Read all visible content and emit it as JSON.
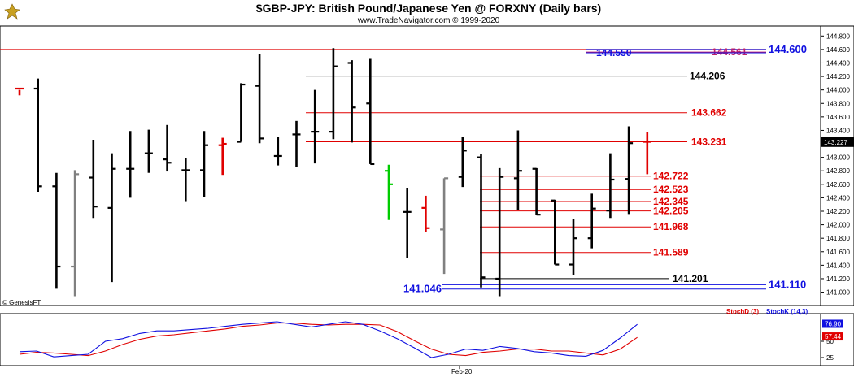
{
  "chart_data": {
    "type": "ohlc",
    "title": "$GBP-JPY:  British Pound/Japanese Yen @ FORXNY  (Daily bars)",
    "subtitle": "www.TradeNavigator.com © 1999-2020",
    "watermark": "© GenesisFT",
    "x_label": "Feb-20",
    "price_axis": {
      "ylim": [
        140.85,
        144.9
      ],
      "ticks": [
        "144.800",
        "144.600",
        "144.400",
        "144.200",
        "144.000",
        "143.800",
        "143.600",
        "143.400",
        "143.200",
        "143.000",
        "142.800",
        "142.600",
        "142.400",
        "142.200",
        "142.000",
        "141.800",
        "141.600",
        "141.400",
        "141.200",
        "141.000"
      ],
      "tick_values": [
        144.8,
        144.6,
        144.4,
        144.2,
        144.0,
        143.8,
        143.6,
        143.4,
        143.2,
        143.0,
        142.8,
        142.6,
        142.4,
        142.2,
        142.0,
        141.8,
        141.6,
        141.4,
        141.2,
        141.0
      ],
      "last_price": "143.227",
      "last_value": 143.227
    },
    "bars": [
      {
        "o": 144.02,
        "h": 144.0,
        "l": 143.92,
        "c": 144.02,
        "color": "#e00000"
      },
      {
        "o": 144.02,
        "h": 144.17,
        "l": 142.49,
        "c": 142.57,
        "color": "#000000"
      },
      {
        "o": 142.57,
        "h": 142.77,
        "l": 141.05,
        "c": 141.38,
        "color": "#000000"
      },
      {
        "o": 141.38,
        "h": 142.81,
        "l": 140.94,
        "c": 142.75,
        "color": "#808080"
      },
      {
        "o": 142.7,
        "h": 143.26,
        "l": 142.1,
        "c": 142.27,
        "color": "#000000"
      },
      {
        "o": 142.25,
        "h": 143.06,
        "l": 141.15,
        "c": 142.83,
        "color": "#000000"
      },
      {
        "o": 142.83,
        "h": 143.39,
        "l": 142.4,
        "c": 142.83,
        "color": "#000000"
      },
      {
        "o": 143.06,
        "h": 143.41,
        "l": 142.77,
        "c": 143.06,
        "color": "#000000"
      },
      {
        "o": 142.97,
        "h": 143.48,
        "l": 142.79,
        "c": 142.92,
        "color": "#000000"
      },
      {
        "o": 142.81,
        "h": 142.99,
        "l": 142.35,
        "c": 142.81,
        "color": "#000000"
      },
      {
        "o": 142.81,
        "h": 143.39,
        "l": 142.41,
        "c": 143.18,
        "color": "#000000"
      },
      {
        "o": 143.18,
        "h": 143.29,
        "l": 142.74,
        "c": 143.2,
        "color": "#e00000"
      },
      {
        "o": 143.23,
        "h": 144.1,
        "l": 143.23,
        "c": 144.08,
        "color": "#000000"
      },
      {
        "o": 144.06,
        "h": 144.53,
        "l": 143.21,
        "c": 143.28,
        "color": "#000000"
      },
      {
        "o": 143.02,
        "h": 143.3,
        "l": 142.88,
        "c": 143.02,
        "color": "#000000"
      },
      {
        "o": 143.34,
        "h": 143.54,
        "l": 142.86,
        "c": 143.34,
        "color": "#000000"
      },
      {
        "o": 143.38,
        "h": 144.0,
        "l": 142.91,
        "c": 143.38,
        "color": "#000000"
      },
      {
        "o": 143.38,
        "h": 144.62,
        "l": 143.27,
        "c": 144.35,
        "color": "#000000"
      },
      {
        "o": 144.4,
        "h": 144.44,
        "l": 143.22,
        "c": 143.74,
        "color": "#000000"
      },
      {
        "o": 143.8,
        "h": 144.46,
        "l": 142.9,
        "c": 142.9,
        "color": "#000000"
      },
      {
        "o": 142.8,
        "h": 142.89,
        "l": 142.07,
        "c": 142.6,
        "color": "#00cc00"
      },
      {
        "o": 142.19,
        "h": 142.55,
        "l": 141.51,
        "c": 142.19,
        "color": "#000000"
      },
      {
        "o": 142.25,
        "h": 142.43,
        "l": 141.89,
        "c": 141.95,
        "color": "#e00000"
      },
      {
        "o": 141.93,
        "h": 142.69,
        "l": 141.27,
        "c": 142.69,
        "color": "#808080"
      },
      {
        "o": 142.71,
        "h": 143.3,
        "l": 142.56,
        "c": 143.1,
        "color": "#000000"
      },
      {
        "o": 143.0,
        "h": 143.05,
        "l": 141.07,
        "c": 141.22,
        "color": "#000000"
      },
      {
        "o": 141.2,
        "h": 142.84,
        "l": 140.94,
        "c": 142.71,
        "color": "#000000"
      },
      {
        "o": 142.69,
        "h": 143.4,
        "l": 142.22,
        "c": 142.8,
        "color": "#000000"
      },
      {
        "o": 142.83,
        "h": 142.84,
        "l": 142.15,
        "c": 142.15,
        "color": "#000000"
      },
      {
        "o": 142.36,
        "h": 142.37,
        "l": 141.41,
        "c": 141.41,
        "color": "#000000"
      },
      {
        "o": 141.41,
        "h": 142.08,
        "l": 141.26,
        "c": 141.8,
        "color": "#000000"
      },
      {
        "o": 141.8,
        "h": 142.46,
        "l": 141.65,
        "c": 142.24,
        "color": "#000000"
      },
      {
        "o": 142.21,
        "h": 143.06,
        "l": 142.1,
        "c": 142.67,
        "color": "#000000"
      },
      {
        "o": 142.68,
        "h": 143.46,
        "l": 142.16,
        "c": 143.21,
        "color": "#000000"
      },
      {
        "o": 143.23,
        "h": 143.37,
        "l": 142.75,
        "c": 143.23,
        "color": "#e00000"
      }
    ],
    "levels": [
      {
        "label": "144.600",
        "value": 144.6,
        "color": "#1010e0",
        "size": "big"
      },
      {
        "label": "144.561",
        "value": 144.561,
        "color": "#c0206a",
        "size": "normal"
      },
      {
        "label": "144.550",
        "value": 144.55,
        "color": "#1010e0",
        "size": "normal"
      },
      {
        "label": "144.206",
        "value": 144.206,
        "color": "#000000",
        "size": "normal"
      },
      {
        "label": "143.662",
        "value": 143.662,
        "color": "#e00000",
        "size": "normal"
      },
      {
        "label": "143.231",
        "value": 143.231,
        "color": "#e00000",
        "size": "normal"
      },
      {
        "label": "142.722",
        "value": 142.722,
        "color": "#e00000",
        "size": "normal"
      },
      {
        "label": "142.523",
        "value": 142.523,
        "color": "#e00000",
        "size": "normal"
      },
      {
        "label": "142.345",
        "value": 142.345,
        "color": "#e00000",
        "size": "normal"
      },
      {
        "label": "142.205",
        "value": 142.205,
        "color": "#e00000",
        "size": "normal"
      },
      {
        "label": "141.968",
        "value": 141.968,
        "color": "#e00000",
        "size": "normal"
      },
      {
        "label": "141.589",
        "value": 141.589,
        "color": "#e00000",
        "size": "normal"
      },
      {
        "label": "141.201",
        "value": 141.201,
        "color": "#000000",
        "size": "normal"
      },
      {
        "label": "141.046",
        "value": 141.046,
        "color": "#1010e0",
        "size": "big"
      },
      {
        "label": "141.110",
        "value": 141.11,
        "color": "#1010e0",
        "size": "big"
      }
    ],
    "stochastic": {
      "ylim": [
        15,
        90
      ],
      "legend_d": "StochD (3)",
      "legend_k": "StochK (14,3)",
      "d_color": "#e00000",
      "k_color": "#1010e0",
      "ticks": [
        "50",
        "25"
      ],
      "tick_values": [
        50,
        25
      ],
      "k_value_label": "76.90",
      "k_value": 76.9,
      "d_value_label": "57.44",
      "d_value": 57.44,
      "k_values": [
        34,
        35,
        26,
        28,
        30,
        50,
        54,
        62,
        66,
        66,
        68,
        70,
        73,
        76,
        78,
        80,
        76,
        72,
        76,
        80,
        76,
        66,
        54,
        40,
        25,
        30,
        38,
        36,
        42,
        39,
        34,
        32,
        28,
        27,
        36,
        55,
        76
      ],
      "d_values": [
        30,
        33,
        32,
        30,
        28,
        35,
        45,
        53,
        58,
        60,
        63,
        66,
        69,
        73,
        75,
        78,
        78,
        76,
        75,
        76,
        76,
        75,
        65,
        51,
        38,
        30,
        28,
        33,
        35,
        38,
        38,
        35,
        35,
        32,
        29,
        38,
        56
      ]
    }
  }
}
